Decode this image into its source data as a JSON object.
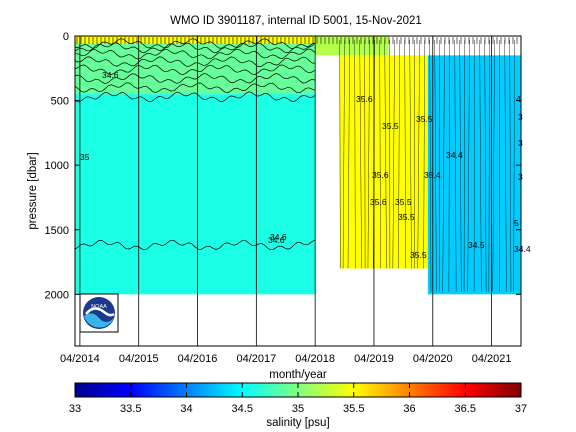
{
  "chart_data": {
    "type": "heatmap",
    "title": "WMO ID 3901187, internal ID 5001, 15-Nov-2021",
    "xlabel": "month/year",
    "ylabel": "pressure [dbar]",
    "x_ticks": [
      "04/2014",
      "04/2015",
      "04/2016",
      "04/2017",
      "04/2018",
      "04/2019",
      "04/2020",
      "04/2021"
    ],
    "x_range": [
      "2014-03",
      "2021-10"
    ],
    "y_ticks": [
      0,
      500,
      1000,
      1500,
      2000
    ],
    "ylim": [
      2400,
      0
    ],
    "y_reversed": true,
    "grid": "vertical lines at x ticks",
    "colorbar": {
      "label": "salinity [psu]",
      "ticks": [
        33,
        33.5,
        34,
        34.5,
        35,
        35.5,
        36,
        36.5,
        37
      ],
      "tick_labels": [
        "33",
        "33.5",
        "34",
        "34.5",
        "35",
        "35.5",
        "36",
        "36.5",
        "37"
      ],
      "range": [
        33,
        37
      ],
      "colormap": "jet"
    },
    "contour_labels": [
      "34.6",
      "34.6",
      "35.6",
      "35.5",
      "35.6",
      "35.5",
      "35.6",
      "34.6",
      "35",
      "35.4",
      "34.4",
      "34.5",
      "34.4",
      "35.5",
      "35.5",
      "35.5",
      "3",
      "3",
      "3",
      "4",
      "5"
    ],
    "regions": [
      {
        "period": [
          "2014-03",
          "2018-04"
        ],
        "pressure": [
          0,
          60
        ],
        "salinity": 35.5
      },
      {
        "period": [
          "2014-03",
          "2018-04"
        ],
        "pressure": [
          60,
          450
        ],
        "salinity": 34.9
      },
      {
        "period": [
          "2014-03",
          "2018-04"
        ],
        "pressure": [
          450,
          2000
        ],
        "salinity": 34.6
      },
      {
        "period": [
          "2018-04",
          "2019-07"
        ],
        "pressure": [
          0,
          150
        ],
        "salinity": 35.2
      },
      {
        "period": [
          "2018-09",
          "2020-03"
        ],
        "pressure": [
          150,
          1800
        ],
        "salinity": 35.5
      },
      {
        "period": [
          "2020-03",
          "2021-10"
        ],
        "pressure": [
          150,
          2000
        ],
        "salinity": 34.3
      }
    ]
  },
  "logo": {
    "text": "NOAA"
  }
}
